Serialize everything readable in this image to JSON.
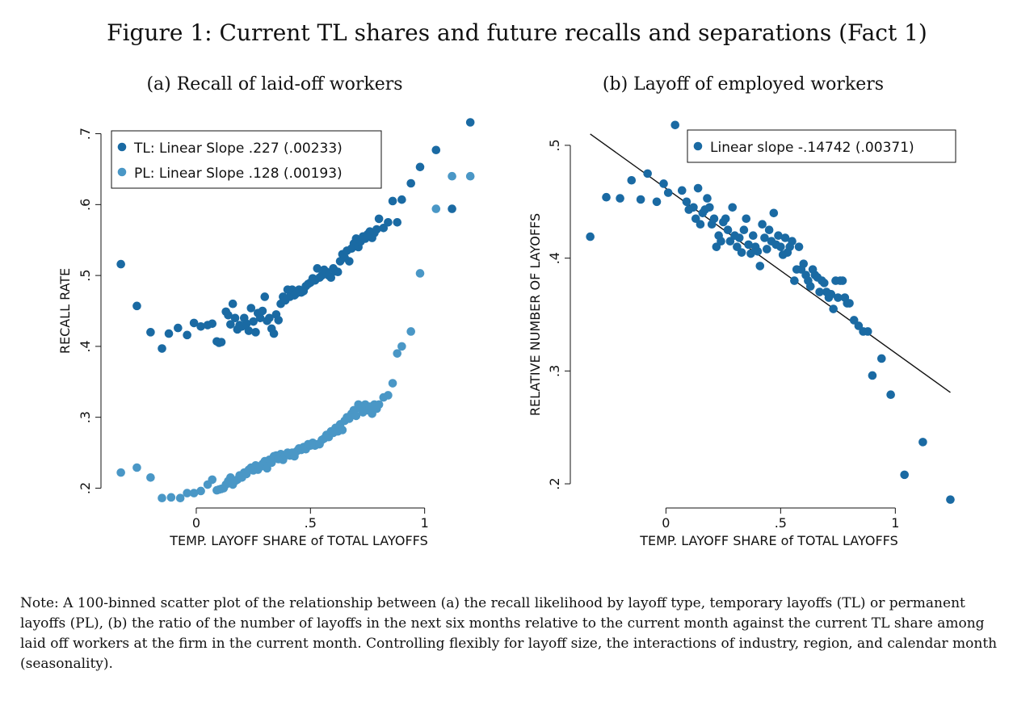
{
  "figure_title": "Figure 1: Current TL shares and future recalls and separations (Fact 1)",
  "note": "Note: A 100-binned scatter plot of the relationship between (a) the recall likelihood by layoff type, temporary layoffs (TL) or permanent layoffs (PL), (b) the ratio of the number of layoffs in the next six months relative to the current month against the current TL share among laid off workers at the firm in the current month. Controlling flexibly for layoff size, the interactions of industry, region, and calendar month (seasonality).",
  "colors": {
    "tl": "#1a6aa3",
    "pl": "#4a97c6",
    "fit_line": "#111111",
    "axis": "#111111"
  },
  "chart_data": [
    {
      "type": "scatter",
      "title": "(a) Recall of laid-off workers",
      "xlabel": "TEMP. LAYOFF SHARE of TOTAL LAYOFFS",
      "ylabel": "RECALL RATE",
      "xlim": [
        -0.35,
        1.27
      ],
      "ylim": [
        0.18,
        0.72
      ],
      "xticks": [
        0,
        0.5,
        1
      ],
      "xtick_labels": [
        "0",
        ".5",
        "1"
      ],
      "yticks": [
        0.2,
        0.3,
        0.4,
        0.5,
        0.6,
        0.7
      ],
      "ytick_labels": [
        ".2",
        ".3",
        ".4",
        ".5",
        ".6",
        ".7"
      ],
      "legend_position": "top-left",
      "series": [
        {
          "name": "TL: Linear Slope .227 (.00233)",
          "color": "#1a6aa3",
          "x": [
            -0.33,
            -0.26,
            -0.2,
            -0.15,
            -0.12,
            -0.08,
            -0.04,
            -0.01,
            0.02,
            0.05,
            0.07,
            0.09,
            0.1,
            0.11,
            0.13,
            0.14,
            0.15,
            0.16,
            0.17,
            0.18,
            0.19,
            0.2,
            0.21,
            0.22,
            0.23,
            0.24,
            0.25,
            0.26,
            0.27,
            0.28,
            0.29,
            0.3,
            0.31,
            0.32,
            0.33,
            0.34,
            0.35,
            0.36,
            0.37,
            0.38,
            0.39,
            0.4,
            0.41,
            0.42,
            0.43,
            0.44,
            0.45,
            0.46,
            0.47,
            0.48,
            0.49,
            0.5,
            0.51,
            0.52,
            0.53,
            0.54,
            0.55,
            0.56,
            0.57,
            0.58,
            0.59,
            0.6,
            0.61,
            0.62,
            0.63,
            0.64,
            0.65,
            0.66,
            0.67,
            0.68,
            0.69,
            0.7,
            0.71,
            0.72,
            0.73,
            0.74,
            0.75,
            0.76,
            0.77,
            0.78,
            0.79,
            0.8,
            0.82,
            0.84,
            0.86,
            0.88,
            0.9,
            0.94,
            0.98,
            1.05,
            1.12,
            1.2
          ],
          "y": [
            0.516,
            0.457,
            0.42,
            0.397,
            0.418,
            0.426,
            0.416,
            0.433,
            0.428,
            0.43,
            0.432,
            0.407,
            0.405,
            0.406,
            0.449,
            0.444,
            0.431,
            0.46,
            0.44,
            0.424,
            0.43,
            0.428,
            0.44,
            0.432,
            0.422,
            0.454,
            0.435,
            0.42,
            0.447,
            0.44,
            0.45,
            0.47,
            0.436,
            0.44,
            0.425,
            0.418,
            0.445,
            0.437,
            0.46,
            0.47,
            0.465,
            0.48,
            0.47,
            0.48,
            0.472,
            0.475,
            0.48,
            0.476,
            0.478,
            0.485,
            0.488,
            0.49,
            0.496,
            0.493,
            0.51,
            0.497,
            0.5,
            0.508,
            0.505,
            0.5,
            0.497,
            0.51,
            0.506,
            0.505,
            0.52,
            0.53,
            0.525,
            0.535,
            0.52,
            0.538,
            0.545,
            0.552,
            0.54,
            0.548,
            0.555,
            0.552,
            0.558,
            0.562,
            0.553,
            0.56,
            0.565,
            0.58,
            0.567,
            0.575,
            0.605,
            0.575,
            0.607,
            0.63,
            0.653,
            0.677,
            0.594,
            0.716
          ]
        },
        {
          "name": "PL: Linear Slope .128 (.00193)",
          "color": "#4a97c6",
          "x": [
            -0.33,
            -0.26,
            -0.2,
            -0.15,
            -0.11,
            -0.07,
            -0.04,
            -0.01,
            0.02,
            0.05,
            0.07,
            0.09,
            0.1,
            0.11,
            0.12,
            0.13,
            0.14,
            0.15,
            0.16,
            0.17,
            0.18,
            0.19,
            0.2,
            0.21,
            0.22,
            0.23,
            0.24,
            0.25,
            0.26,
            0.27,
            0.28,
            0.29,
            0.3,
            0.31,
            0.32,
            0.33,
            0.34,
            0.35,
            0.36,
            0.37,
            0.38,
            0.39,
            0.4,
            0.41,
            0.42,
            0.43,
            0.44,
            0.45,
            0.46,
            0.47,
            0.48,
            0.49,
            0.5,
            0.51,
            0.52,
            0.53,
            0.54,
            0.55,
            0.56,
            0.57,
            0.58,
            0.59,
            0.6,
            0.61,
            0.62,
            0.63,
            0.64,
            0.65,
            0.66,
            0.67,
            0.68,
            0.69,
            0.7,
            0.71,
            0.72,
            0.73,
            0.74,
            0.75,
            0.76,
            0.77,
            0.78,
            0.79,
            0.8,
            0.82,
            0.84,
            0.86,
            0.88,
            0.9,
            0.94,
            0.98,
            1.05,
            1.12,
            1.2
          ],
          "y": [
            0.222,
            0.229,
            0.215,
            0.186,
            0.187,
            0.186,
            0.193,
            0.193,
            0.196,
            0.205,
            0.212,
            0.197,
            0.198,
            0.199,
            0.2,
            0.205,
            0.21,
            0.215,
            0.205,
            0.21,
            0.212,
            0.218,
            0.215,
            0.222,
            0.22,
            0.226,
            0.229,
            0.225,
            0.232,
            0.226,
            0.23,
            0.234,
            0.238,
            0.228,
            0.24,
            0.236,
            0.245,
            0.246,
            0.241,
            0.248,
            0.24,
            0.246,
            0.25,
            0.246,
            0.25,
            0.245,
            0.252,
            0.256,
            0.254,
            0.258,
            0.255,
            0.262,
            0.26,
            0.264,
            0.26,
            0.262,
            0.262,
            0.268,
            0.27,
            0.275,
            0.272,
            0.28,
            0.278,
            0.285,
            0.28,
            0.29,
            0.282,
            0.295,
            0.3,
            0.298,
            0.305,
            0.31,
            0.302,
            0.318,
            0.312,
            0.307,
            0.318,
            0.31,
            0.315,
            0.305,
            0.318,
            0.312,
            0.318,
            0.328,
            0.331,
            0.348,
            0.39,
            0.4,
            0.421,
            0.503,
            0.594,
            0.64,
            0.64
          ]
        }
      ]
    },
    {
      "type": "scatter",
      "title": "(b) Layoff of employed workers",
      "xlabel": "TEMP. LAYOFF SHARE of TOTAL LAYOFFS",
      "ylabel": "RELATIVE NUMBER OF LAYOFFS",
      "xlim": [
        -0.35,
        1.27
      ],
      "ylim": [
        0.18,
        0.52
      ],
      "xticks": [
        0,
        0.5,
        1
      ],
      "xtick_labels": [
        "0",
        ".5",
        "1"
      ],
      "yticks": [
        0.2,
        0.3,
        0.4,
        0.5
      ],
      "ytick_labels": [
        ".2",
        ".3",
        ".4",
        ".5"
      ],
      "legend_position": "top-right",
      "fit_line": {
        "x": [
          -0.33,
          1.24
        ],
        "y": [
          0.51,
          0.281
        ]
      },
      "series": [
        {
          "name": "Linear slope  -.14742 (.00371)",
          "color": "#1a6aa3",
          "x": [
            -0.33,
            -0.26,
            -0.2,
            -0.15,
            -0.11,
            -0.08,
            -0.04,
            -0.01,
            0.01,
            0.04,
            0.07,
            0.09,
            0.1,
            0.12,
            0.13,
            0.14,
            0.15,
            0.16,
            0.17,
            0.18,
            0.19,
            0.2,
            0.21,
            0.22,
            0.23,
            0.24,
            0.25,
            0.26,
            0.27,
            0.28,
            0.29,
            0.3,
            0.31,
            0.32,
            0.33,
            0.34,
            0.35,
            0.36,
            0.37,
            0.38,
            0.39,
            0.4,
            0.41,
            0.42,
            0.43,
            0.44,
            0.45,
            0.46,
            0.47,
            0.48,
            0.49,
            0.5,
            0.51,
            0.52,
            0.53,
            0.54,
            0.55,
            0.56,
            0.57,
            0.58,
            0.59,
            0.6,
            0.61,
            0.62,
            0.63,
            0.64,
            0.65,
            0.66,
            0.67,
            0.68,
            0.69,
            0.7,
            0.71,
            0.72,
            0.73,
            0.74,
            0.75,
            0.76,
            0.77,
            0.78,
            0.79,
            0.8,
            0.82,
            0.84,
            0.86,
            0.88,
            0.9,
            0.94,
            0.98,
            1.04,
            1.12,
            1.24
          ],
          "y": [
            0.419,
            0.454,
            0.453,
            0.469,
            0.452,
            0.475,
            0.45,
            0.466,
            0.458,
            0.518,
            0.46,
            0.45,
            0.443,
            0.445,
            0.435,
            0.462,
            0.43,
            0.44,
            0.443,
            0.453,
            0.445,
            0.43,
            0.435,
            0.41,
            0.42,
            0.415,
            0.432,
            0.435,
            0.425,
            0.415,
            0.445,
            0.42,
            0.41,
            0.418,
            0.405,
            0.425,
            0.435,
            0.412,
            0.404,
            0.42,
            0.41,
            0.406,
            0.393,
            0.43,
            0.418,
            0.408,
            0.425,
            0.415,
            0.44,
            0.412,
            0.42,
            0.41,
            0.403,
            0.418,
            0.405,
            0.41,
            0.415,
            0.38,
            0.39,
            0.41,
            0.39,
            0.395,
            0.385,
            0.38,
            0.375,
            0.39,
            0.385,
            0.383,
            0.37,
            0.38,
            0.378,
            0.37,
            0.365,
            0.368,
            0.355,
            0.38,
            0.365,
            0.38,
            0.38,
            0.365,
            0.36,
            0.36,
            0.345,
            0.34,
            0.335,
            0.335,
            0.296,
            0.311,
            0.279,
            0.208,
            0.237,
            0.186
          ]
        }
      ]
    }
  ]
}
